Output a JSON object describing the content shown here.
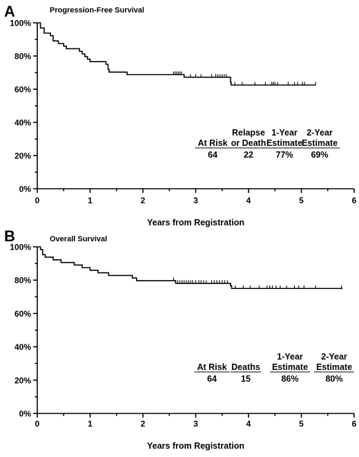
{
  "chart_data": [
    {
      "type": "line",
      "panel_label": "A",
      "title": "Progression-Free Survival",
      "xlabel": "Years from Registration",
      "ylabel": "",
      "xlim": [
        0,
        6
      ],
      "ylim": [
        0,
        100
      ],
      "x_ticks": [
        "0",
        "1",
        "2",
        "3",
        "4",
        "5",
        "6"
      ],
      "y_ticks": [
        "0%",
        "20%",
        "40%",
        "60%",
        "80%",
        "100%"
      ],
      "steps": [
        [
          0,
          100
        ],
        [
          0.06,
          96.9
        ],
        [
          0.13,
          93.8
        ],
        [
          0.25,
          92.2
        ],
        [
          0.3,
          89.1
        ],
        [
          0.4,
          87.5
        ],
        [
          0.5,
          85.9
        ],
        [
          0.55,
          84.4
        ],
        [
          0.8,
          82.8
        ],
        [
          0.85,
          81.3
        ],
        [
          0.9,
          79.7
        ],
        [
          0.95,
          78.1
        ],
        [
          1.0,
          76.6
        ],
        [
          1.3,
          75.0
        ],
        [
          1.34,
          71.9
        ],
        [
          1.36,
          70.3
        ],
        [
          1.7,
          68.8
        ],
        [
          2.78,
          67.2
        ],
        [
          3.66,
          64.1
        ],
        [
          3.67,
          62.5
        ],
        [
          5.27,
          62.5
        ]
      ],
      "censored": [
        2.58,
        2.61,
        2.64,
        2.67,
        2.7,
        2.73,
        2.78,
        2.9,
        3.0,
        3.1,
        3.3,
        3.38,
        3.42,
        3.46,
        3.5,
        3.54,
        3.58,
        3.74,
        3.88,
        4.12,
        4.32,
        4.44,
        4.47,
        4.5,
        4.55,
        4.75,
        4.87,
        4.93,
        5.02,
        5.06,
        5.27
      ],
      "table": {
        "headers": [
          [
            "At Risk"
          ],
          [
            "Relapse",
            "or Death"
          ],
          [
            "1-Year",
            "Estimate"
          ],
          [
            "2-Year",
            "Estimate"
          ]
        ],
        "values": [
          "64",
          "22",
          "77%",
          "69%"
        ]
      }
    },
    {
      "type": "line",
      "panel_label": "B",
      "title": "Overall Survival",
      "xlabel": "Years from Registration",
      "ylabel": "",
      "xlim": [
        0,
        6
      ],
      "ylim": [
        0,
        100
      ],
      "x_ticks": [
        "0",
        "1",
        "2",
        "3",
        "4",
        "5",
        "6"
      ],
      "y_ticks": [
        "0%",
        "20%",
        "40%",
        "60%",
        "80%",
        "100%"
      ],
      "steps": [
        [
          0,
          100
        ],
        [
          0.06,
          98.4
        ],
        [
          0.1,
          95.3
        ],
        [
          0.15,
          93.8
        ],
        [
          0.3,
          92.2
        ],
        [
          0.45,
          90.6
        ],
        [
          0.7,
          89.1
        ],
        [
          0.85,
          87.5
        ],
        [
          1.0,
          85.9
        ],
        [
          1.15,
          84.4
        ],
        [
          1.35,
          82.8
        ],
        [
          1.8,
          81.3
        ],
        [
          1.88,
          79.7
        ],
        [
          2.62,
          78.1
        ],
        [
          3.66,
          76.6
        ],
        [
          3.68,
          75.0
        ],
        [
          5.78,
          75.0
        ]
      ],
      "censored": [
        2.58,
        2.62,
        2.66,
        2.7,
        2.74,
        2.78,
        2.82,
        2.86,
        2.9,
        2.94,
        3.0,
        3.06,
        3.1,
        3.15,
        3.2,
        3.3,
        3.35,
        3.4,
        3.45,
        3.5,
        3.55,
        3.6,
        3.75,
        3.9,
        4.03,
        4.2,
        4.35,
        4.4,
        4.45,
        4.52,
        4.6,
        4.72,
        4.87,
        4.95,
        5.05,
        5.27,
        5.76
      ],
      "table": {
        "headers": [
          [
            "At Risk"
          ],
          [
            "Deaths"
          ],
          [
            "1-Year",
            "Estimate"
          ],
          [
            "2-Year",
            "Estimate"
          ]
        ],
        "values": [
          "64",
          "15",
          "86%",
          "80%"
        ]
      }
    }
  ]
}
